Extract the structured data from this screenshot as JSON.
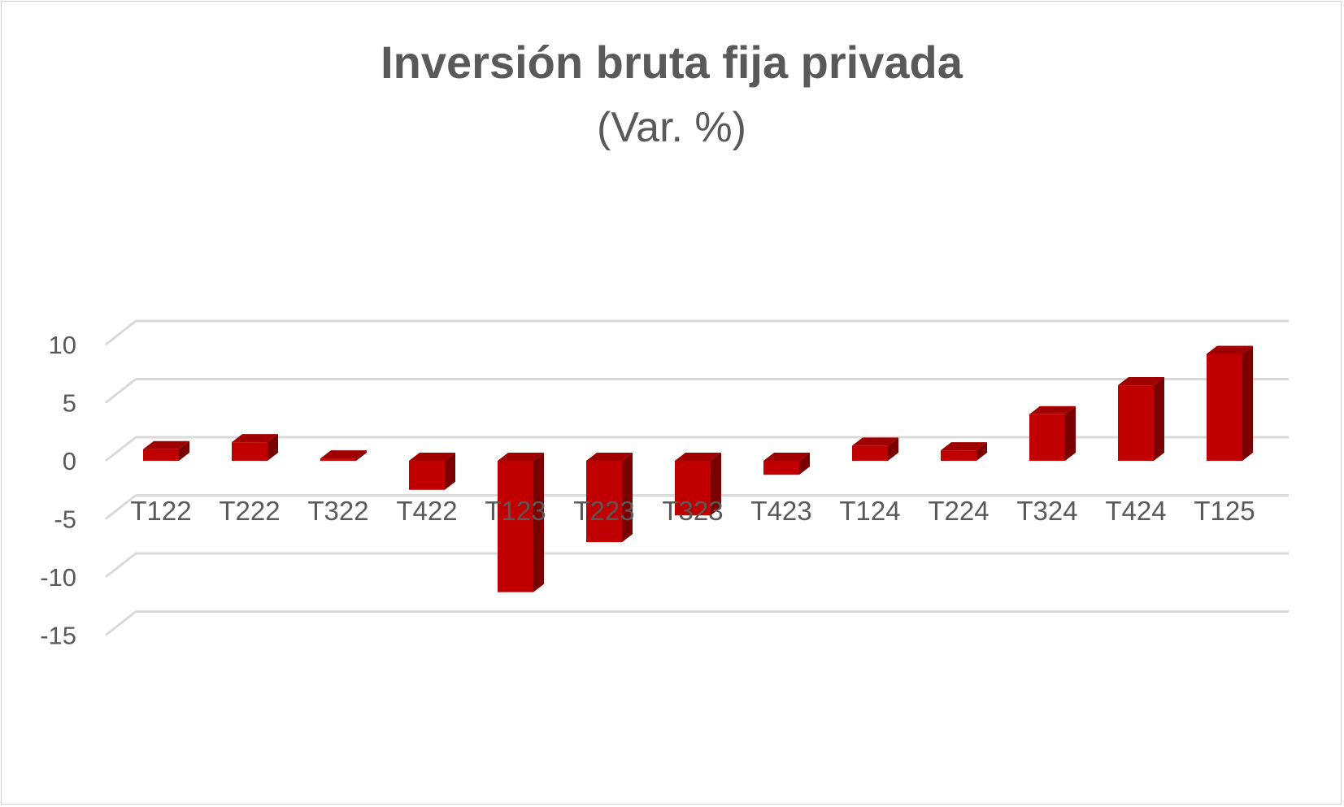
{
  "chart_data": {
    "type": "bar",
    "title": "Inversión bruta fija privada",
    "subtitle": "(Var. %)",
    "categories": [
      "T122",
      "T222",
      "T322",
      "T422",
      "T123",
      "T223",
      "T323",
      "T423",
      "T124",
      "T224",
      "T324",
      "T424",
      "T125"
    ],
    "series": [
      {
        "values": [
          1.0,
          1.6,
          0.2,
          -2.5,
          -11.3,
          -7.0,
          -4.7,
          -1.2,
          1.3,
          0.9,
          4.0,
          6.5,
          9.2
        ]
      }
    ],
    "yticks": [
      10,
      5,
      0,
      -5,
      -10,
      -15
    ],
    "ylim": [
      -15,
      10
    ],
    "grid": true,
    "legend": "none",
    "colors": {
      "bar_front": "#c00000",
      "bar_top": "#a00000",
      "bar_side": "#7a0000",
      "gridline": "#d9d9d9",
      "text": "#595959"
    }
  }
}
